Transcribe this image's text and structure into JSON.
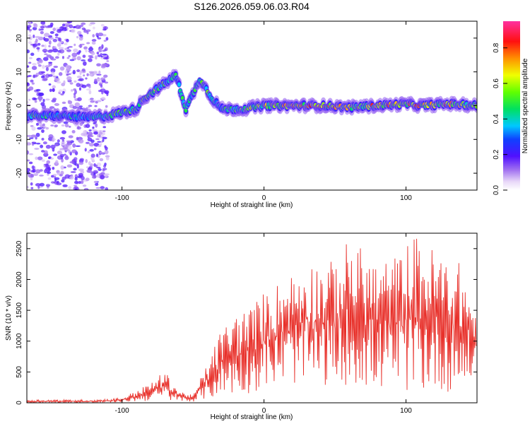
{
  "figure_title": "S126.2026.059.06.03.R04",
  "chart_data": [
    {
      "type": "heatmap",
      "xlabel": "Height of straight line (km)",
      "ylabel": "Frequency (Hz)",
      "xlim": [
        -167,
        150
      ],
      "ylim": [
        -25,
        25
      ],
      "xticks": [
        -100,
        0,
        100
      ],
      "yticks": [
        -20,
        -10,
        0,
        10,
        20
      ],
      "colorbar": {
        "label": "Normalized spectral amplitude",
        "range": [
          0,
          0.95
        ],
        "ticks": [
          0.0,
          0.2,
          0.4,
          0.6,
          0.8
        ]
      },
      "grid": false,
      "ridge": [
        {
          "x": -167,
          "y": -3,
          "amp": 0.55
        },
        {
          "x": -155,
          "y": -3,
          "amp": 0.5
        },
        {
          "x": -140,
          "y": -3,
          "amp": 0.45
        },
        {
          "x": -125,
          "y": -3.5,
          "amp": 0.45
        },
        {
          "x": -110,
          "y": -3,
          "amp": 0.5
        },
        {
          "x": -100,
          "y": -2,
          "amp": 0.55
        },
        {
          "x": -90,
          "y": -1,
          "amp": 0.55
        },
        {
          "x": -85,
          "y": 2,
          "amp": 0.6
        },
        {
          "x": -75,
          "y": 5,
          "amp": 0.6
        },
        {
          "x": -62,
          "y": 9,
          "amp": 0.5
        },
        {
          "x": -55,
          "y": -1,
          "amp": 0.5
        },
        {
          "x": -45,
          "y": 8,
          "amp": 0.55
        },
        {
          "x": -38,
          "y": 3,
          "amp": 0.55
        },
        {
          "x": -30,
          "y": -1,
          "amp": 0.5
        },
        {
          "x": -15,
          "y": -1,
          "amp": 0.6
        },
        {
          "x": 0,
          "y": 0,
          "amp": 0.7
        },
        {
          "x": 20,
          "y": 0,
          "amp": 0.8
        },
        {
          "x": 40,
          "y": 0,
          "amp": 0.85
        },
        {
          "x": 60,
          "y": -0.5,
          "amp": 0.7
        },
        {
          "x": 80,
          "y": 0,
          "amp": 0.8
        },
        {
          "x": 100,
          "y": 0.5,
          "amp": 0.75
        },
        {
          "x": 110,
          "y": 0,
          "amp": 0.85
        },
        {
          "x": 130,
          "y": 0.5,
          "amp": 0.75
        },
        {
          "x": 150,
          "y": 0,
          "amp": 0.65
        }
      ],
      "noise_region_x": [
        -167,
        -110
      ]
    },
    {
      "type": "line",
      "xlabel": "Height of straight line (km)",
      "ylabel": "SNR (10 * v/v)",
      "xlim": [
        -167,
        150
      ],
      "ylim": [
        0,
        2750
      ],
      "xticks": [
        -100,
        0,
        100
      ],
      "yticks": [
        0,
        500,
        1000,
        1500,
        2000,
        2500
      ],
      "grid": false,
      "series": [
        {
          "color": "#e8302a",
          "envelope": [
            {
              "x": -167,
              "low": 0,
              "high": 50
            },
            {
              "x": -120,
              "low": 0,
              "high": 50
            },
            {
              "x": -100,
              "low": 10,
              "high": 80
            },
            {
              "x": -90,
              "low": 20,
              "high": 200
            },
            {
              "x": -80,
              "low": 30,
              "high": 320
            },
            {
              "x": -70,
              "low": 40,
              "high": 520
            },
            {
              "x": -60,
              "low": 20,
              "high": 200
            },
            {
              "x": -50,
              "low": 20,
              "high": 120
            },
            {
              "x": -40,
              "low": 60,
              "high": 650
            },
            {
              "x": -30,
              "low": 100,
              "high": 1200
            },
            {
              "x": -20,
              "low": 150,
              "high": 1450
            },
            {
              "x": -10,
              "low": 150,
              "high": 1550
            },
            {
              "x": 0,
              "low": 250,
              "high": 1800
            },
            {
              "x": 15,
              "low": 300,
              "high": 2050
            },
            {
              "x": 30,
              "low": 300,
              "high": 2300
            },
            {
              "x": 50,
              "low": 250,
              "high": 2300
            },
            {
              "x": 60,
              "low": 300,
              "high": 2680
            },
            {
              "x": 80,
              "low": 200,
              "high": 2300
            },
            {
              "x": 95,
              "low": 200,
              "high": 2400
            },
            {
              "x": 105,
              "low": 150,
              "high": 2750
            },
            {
              "x": 120,
              "low": 200,
              "high": 2500
            },
            {
              "x": 140,
              "low": 150,
              "high": 2250
            },
            {
              "x": 150,
              "low": 500,
              "high": 1400
            }
          ]
        }
      ]
    }
  ]
}
